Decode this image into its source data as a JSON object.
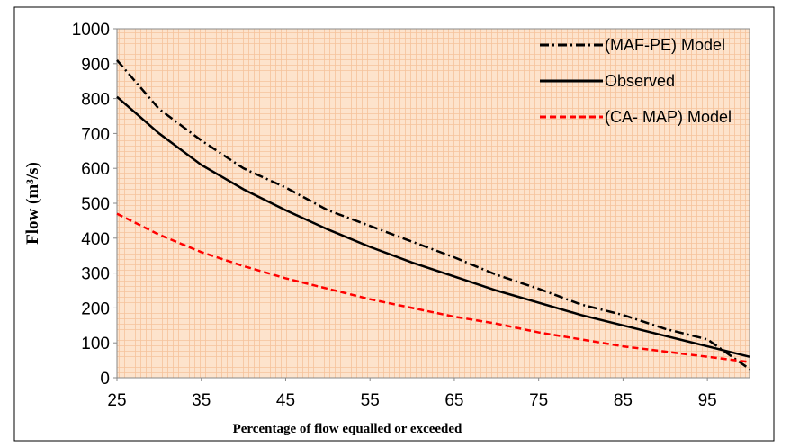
{
  "chart_data": {
    "type": "line",
    "xlabel": "Percentage of flow equalled or exceeded",
    "ylabel": "Flow (m³/s)",
    "x": [
      25,
      30,
      35,
      40,
      45,
      50,
      55,
      60,
      65,
      70,
      75,
      80,
      85,
      90,
      95,
      100
    ],
    "series": [
      {
        "name": "(MAF-PE) Model",
        "color": "#000000",
        "style": "dashdot",
        "values": [
          910,
          770,
          680,
          600,
          545,
          480,
          435,
          390,
          345,
          295,
          255,
          210,
          180,
          140,
          110,
          25
        ]
      },
      {
        "name": "Observed",
        "color": "#000000",
        "style": "solid",
        "values": [
          805,
          700,
          610,
          540,
          480,
          425,
          375,
          330,
          290,
          250,
          215,
          180,
          150,
          120,
          90,
          60
        ]
      },
      {
        "name": "(CA- MAP) Model",
        "color": "#ff0000",
        "style": "dashed",
        "values": [
          470,
          410,
          360,
          320,
          285,
          255,
          225,
          200,
          175,
          155,
          130,
          110,
          90,
          75,
          60,
          45
        ]
      }
    ],
    "xlim": [
      25,
      100
    ],
    "xticks": [
      25,
      35,
      45,
      55,
      65,
      75,
      85,
      95
    ],
    "ylim": [
      0,
      1000
    ],
    "yticks": [
      0,
      100,
      200,
      300,
      400,
      500,
      600,
      700,
      800,
      900,
      1000
    ],
    "legend": "upper right",
    "grid": false
  }
}
